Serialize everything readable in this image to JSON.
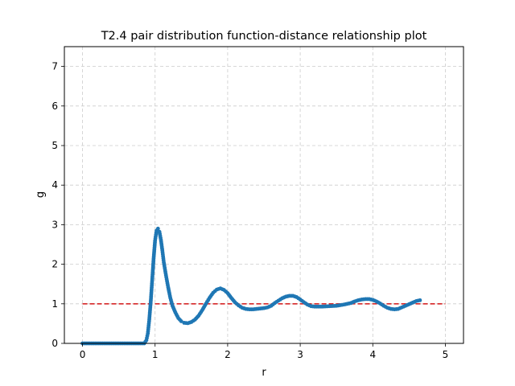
{
  "chart_data": {
    "type": "scatter",
    "title": "T2.4 pair distribution function-distance relationship plot",
    "xlabel": "r",
    "ylabel": "g",
    "xlim": [
      -0.25,
      5.25
    ],
    "ylim": [
      0,
      7.5
    ],
    "xticks": [
      0,
      1,
      2,
      3,
      4,
      5
    ],
    "yticks": [
      0,
      1,
      2,
      3,
      4,
      5,
      6,
      7
    ],
    "grid": true,
    "grid_style": "dashed",
    "marker_color": "#1f77b4",
    "reference_line": {
      "y": 1,
      "x_range": [
        0,
        5
      ],
      "color": "#d62728",
      "style": "dashed"
    },
    "series": [
      {
        "points": [
          [
            0.0,
            0.0
          ],
          [
            0.1,
            0.0
          ],
          [
            0.2,
            0.0
          ],
          [
            0.3,
            0.0
          ],
          [
            0.4,
            0.0
          ],
          [
            0.5,
            0.0
          ],
          [
            0.6,
            0.0
          ],
          [
            0.7,
            0.0
          ],
          [
            0.8,
            0.0
          ],
          [
            0.85,
            0.0
          ],
          [
            0.88,
            0.08
          ],
          [
            0.9,
            0.25
          ],
          [
            0.92,
            0.6
          ],
          [
            0.94,
            1.05
          ],
          [
            0.96,
            1.6
          ],
          [
            0.98,
            2.15
          ],
          [
            1.0,
            2.6
          ],
          [
            1.02,
            2.85
          ],
          [
            1.04,
            2.9
          ],
          [
            1.06,
            2.82
          ],
          [
            1.08,
            2.62
          ],
          [
            1.1,
            2.35
          ],
          [
            1.12,
            2.05
          ],
          [
            1.15,
            1.72
          ],
          [
            1.18,
            1.42
          ],
          [
            1.21,
            1.15
          ],
          [
            1.24,
            0.95
          ],
          [
            1.28,
            0.78
          ],
          [
            1.32,
            0.64
          ],
          [
            1.36,
            0.56
          ],
          [
            1.4,
            0.52
          ],
          [
            1.45,
            0.51
          ],
          [
            1.5,
            0.54
          ],
          [
            1.55,
            0.6
          ],
          [
            1.6,
            0.7
          ],
          [
            1.65,
            0.84
          ],
          [
            1.7,
            1.0
          ],
          [
            1.75,
            1.15
          ],
          [
            1.8,
            1.28
          ],
          [
            1.85,
            1.36
          ],
          [
            1.9,
            1.39
          ],
          [
            1.95,
            1.35
          ],
          [
            2.0,
            1.27
          ],
          [
            2.05,
            1.15
          ],
          [
            2.1,
            1.04
          ],
          [
            2.15,
            0.96
          ],
          [
            2.2,
            0.9
          ],
          [
            2.25,
            0.87
          ],
          [
            2.3,
            0.86
          ],
          [
            2.35,
            0.86
          ],
          [
            2.4,
            0.87
          ],
          [
            2.45,
            0.88
          ],
          [
            2.5,
            0.89
          ],
          [
            2.55,
            0.91
          ],
          [
            2.6,
            0.95
          ],
          [
            2.65,
            1.02
          ],
          [
            2.7,
            1.08
          ],
          [
            2.75,
            1.14
          ],
          [
            2.8,
            1.18
          ],
          [
            2.85,
            1.2
          ],
          [
            2.9,
            1.2
          ],
          [
            2.95,
            1.17
          ],
          [
            3.0,
            1.11
          ],
          [
            3.05,
            1.04
          ],
          [
            3.1,
            0.98
          ],
          [
            3.15,
            0.94
          ],
          [
            3.2,
            0.93
          ],
          [
            3.3,
            0.93
          ],
          [
            3.4,
            0.94
          ],
          [
            3.5,
            0.95
          ],
          [
            3.6,
            0.98
          ],
          [
            3.7,
            1.02
          ],
          [
            3.75,
            1.06
          ],
          [
            3.8,
            1.09
          ],
          [
            3.85,
            1.11
          ],
          [
            3.9,
            1.12
          ],
          [
            3.95,
            1.12
          ],
          [
            4.0,
            1.1
          ],
          [
            4.05,
            1.06
          ],
          [
            4.1,
            1.01
          ],
          [
            4.15,
            0.95
          ],
          [
            4.2,
            0.9
          ],
          [
            4.25,
            0.87
          ],
          [
            4.3,
            0.86
          ],
          [
            4.35,
            0.87
          ],
          [
            4.4,
            0.91
          ],
          [
            4.45,
            0.95
          ],
          [
            4.5,
            0.99
          ],
          [
            4.55,
            1.03
          ],
          [
            4.6,
            1.07
          ],
          [
            4.65,
            1.09
          ]
        ]
      }
    ]
  }
}
